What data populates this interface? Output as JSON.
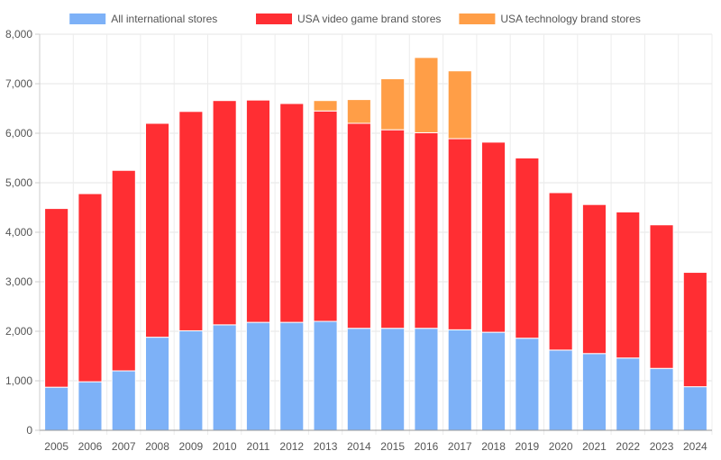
{
  "chart_data": {
    "type": "bar",
    "stacked": true,
    "categories": [
      "2005",
      "2006",
      "2007",
      "2008",
      "2009",
      "2010",
      "2011",
      "2012",
      "2013",
      "2014",
      "2015",
      "2016",
      "2017",
      "2018",
      "2019",
      "2020",
      "2021",
      "2022",
      "2023",
      "2024"
    ],
    "series": [
      {
        "name": "All international stores",
        "color": "#7db1f7",
        "values": [
          870,
          980,
          1200,
          1880,
          2010,
          2130,
          2180,
          2180,
          2200,
          2060,
          2060,
          2060,
          2030,
          1980,
          1860,
          1620,
          1550,
          1460,
          1250,
          880
        ]
      },
      {
        "name": "USA video game brand stores",
        "color": "#ff2e33",
        "values": [
          3610,
          3800,
          4050,
          4320,
          4430,
          4530,
          4490,
          4420,
          4250,
          4140,
          4010,
          3950,
          3860,
          3840,
          3640,
          3180,
          3010,
          2950,
          2900,
          2310
        ]
      },
      {
        "name": "USA technology brand stores",
        "color": "#ff9e47",
        "values": [
          0,
          0,
          0,
          0,
          0,
          0,
          0,
          0,
          210,
          480,
          1030,
          1520,
          1370,
          0,
          0,
          0,
          0,
          0,
          0,
          0
        ]
      }
    ],
    "ylim": [
      0,
      8000
    ],
    "yticks": [
      0,
      1000,
      2000,
      3000,
      4000,
      5000,
      6000,
      7000,
      8000
    ],
    "ytick_labels": [
      "0",
      "1,000",
      "2,000",
      "3,000",
      "4,000",
      "5,000",
      "6,000",
      "7,000",
      "8,000"
    ],
    "legend_position": "top",
    "grid": true
  }
}
